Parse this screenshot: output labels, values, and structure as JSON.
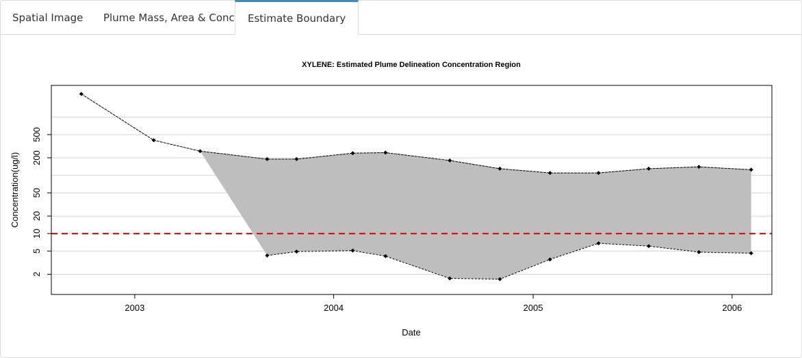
{
  "tabs": [
    {
      "label": "Spatial Image",
      "active": false
    },
    {
      "label": "Plume Mass, Area & Conc.",
      "active": false
    },
    {
      "label": "Estimate Boundary",
      "active": true
    }
  ],
  "colors": {
    "accent": "#3c8dbc",
    "fill": "#bebebe",
    "limit_line": "#e00000",
    "grid": "#d3d3d3"
  },
  "chart_data": {
    "type": "area",
    "title": "XYLENE: Estimated Plume Delineation Concentration Region",
    "xlabel": "Date",
    "ylabel": "Concentration(ug/l)",
    "y_scale": "log",
    "xlim": [
      "2002-08-01",
      "2006-03-15"
    ],
    "ylim": [
      0.9,
      3500
    ],
    "x_ticks": [
      "2003",
      "2004",
      "2005",
      "2006"
    ],
    "y_ticks": [
      "2",
      "5",
      "10",
      "20",
      "50",
      "200",
      "500"
    ],
    "y_tick_values": [
      2,
      5,
      10,
      20,
      50,
      200,
      500
    ],
    "y_grid_values": [
      2,
      5,
      10,
      20,
      50,
      100,
      200,
      500,
      1000
    ],
    "grid": true,
    "reference_line": {
      "value": 10,
      "style": "dashed",
      "color": "#e00000"
    },
    "series": [
      {
        "role": "upper",
        "x": [
          "2002-09-25",
          "2003-02-05",
          "2003-05-01",
          "2003-09-01",
          "2003-10-25",
          "2004-02-05",
          "2004-04-05",
          "2004-08-01",
          "2004-11-01",
          "2005-02-01",
          "2005-05-01",
          "2005-08-01",
          "2005-11-01",
          "2006-02-05"
        ],
        "y": [
          2500,
          400,
          260,
          190,
          190,
          240,
          245,
          180,
          130,
          110,
          110,
          130,
          140,
          125
        ]
      },
      {
        "role": "lower",
        "x": [
          "2003-09-01",
          "2003-10-25",
          "2004-02-05",
          "2004-04-05",
          "2004-08-01",
          "2004-11-01",
          "2005-02-01",
          "2005-05-01",
          "2005-08-01",
          "2005-11-01",
          "2006-02-05"
        ],
        "y": [
          4.2,
          4.9,
          5.1,
          4.1,
          1.7,
          1.65,
          3.6,
          6.8,
          6.1,
          4.8,
          4.6
        ]
      }
    ]
  }
}
